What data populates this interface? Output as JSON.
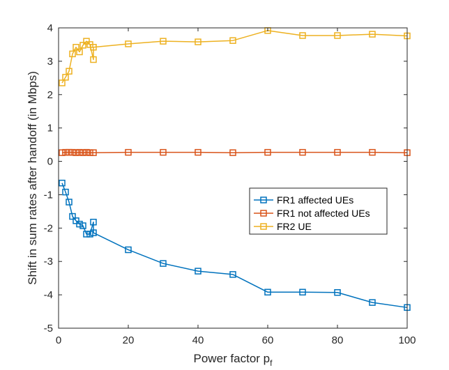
{
  "chart_data": {
    "type": "line",
    "title": "",
    "xlabel": "Power factor p",
    "xlabel_subscript": "f",
    "ylabel": "Shift in sum rates after handoff (in Mbps)",
    "xlim": [
      0,
      100
    ],
    "ylim": [
      -5,
      4
    ],
    "xticks": [
      0,
      20,
      40,
      60,
      80,
      100
    ],
    "yticks": [
      -5,
      -4,
      -3,
      -2,
      -1,
      0,
      1,
      2,
      3,
      4
    ],
    "grid": false,
    "marker": "square",
    "legend_position": "center-right",
    "series": [
      {
        "name": "FR1 affected UEs",
        "color": "#0072BD",
        "x": [
          1,
          2,
          3,
          4,
          5,
          6,
          7,
          8,
          9,
          10,
          10,
          20,
          30,
          40,
          50,
          60,
          70,
          80,
          90,
          100
        ],
        "y": [
          -0.65,
          -0.92,
          -1.22,
          -1.65,
          -1.78,
          -1.88,
          -1.93,
          -2.18,
          -2.18,
          -1.82,
          -2.14,
          -2.65,
          -3.06,
          -3.29,
          -3.39,
          -3.92,
          -3.92,
          -3.93,
          -4.23,
          -4.38
        ]
      },
      {
        "name": "FR1 not affected UEs",
        "color": "#D95319",
        "x": [
          1,
          2,
          3,
          4,
          5,
          6,
          7,
          8,
          9,
          10,
          20,
          30,
          40,
          50,
          60,
          70,
          80,
          90,
          100
        ],
        "y": [
          0.26,
          0.27,
          0.27,
          0.27,
          0.26,
          0.27,
          0.26,
          0.27,
          0.26,
          0.26,
          0.27,
          0.27,
          0.27,
          0.26,
          0.27,
          0.27,
          0.27,
          0.27,
          0.26
        ]
      },
      {
        "name": "FR2 UE",
        "color": "#EDB120",
        "x": [
          1,
          2,
          3,
          4,
          5,
          6,
          7,
          8,
          9,
          10,
          10,
          20,
          30,
          40,
          50,
          60,
          70,
          80,
          90,
          100
        ],
        "y": [
          2.35,
          2.52,
          2.7,
          3.22,
          3.42,
          3.28,
          3.48,
          3.6,
          3.5,
          3.05,
          3.42,
          3.52,
          3.6,
          3.58,
          3.62,
          3.92,
          3.77,
          3.77,
          3.81,
          3.76
        ]
      }
    ]
  }
}
